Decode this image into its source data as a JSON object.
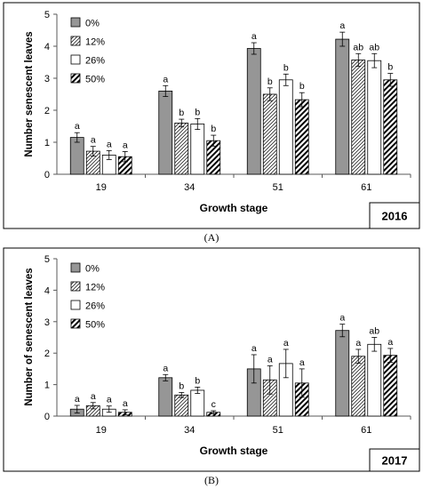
{
  "colors": {
    "bar_fill_0": "#969696",
    "bar_fill_26": "#ffffff",
    "hatch_line": "#000000",
    "axis": "#595959",
    "panel_border": "#000000"
  },
  "chart_data": [
    {
      "type": "bar",
      "panel_caption": "(A)",
      "year_label": "2016",
      "xlabel": "Growth stage",
      "ylabel": "Number senescent leaves",
      "ylim": [
        0,
        5
      ],
      "yticks": [
        "0",
        "1",
        "2",
        "3",
        "4",
        "5"
      ],
      "categories": [
        "19",
        "34",
        "51",
        "61"
      ],
      "legend_position": "top-left",
      "grid": false,
      "series": [
        {
          "name": "0%",
          "pattern": "solid-gray",
          "values": [
            1.15,
            2.6,
            3.93,
            4.22
          ],
          "errors": [
            0.15,
            0.17,
            0.18,
            0.22
          ],
          "labels": [
            "a",
            "a",
            "a",
            "a"
          ]
        },
        {
          "name": "12%",
          "pattern": "light-diagonal-hatch",
          "values": [
            0.72,
            1.6,
            2.5,
            3.57
          ],
          "errors": [
            0.15,
            0.12,
            0.2,
            0.2
          ],
          "labels": [
            "a",
            "b",
            "b",
            "ab"
          ]
        },
        {
          "name": "26%",
          "pattern": "white",
          "values": [
            0.6,
            1.57,
            2.95,
            3.55
          ],
          "errors": [
            0.14,
            0.17,
            0.18,
            0.22
          ],
          "labels": [
            "a",
            "b",
            "b",
            "ab"
          ]
        },
        {
          "name": "50%",
          "pattern": "bold-diagonal-hatch",
          "values": [
            0.55,
            1.05,
            2.33,
            2.95
          ],
          "errors": [
            0.16,
            0.17,
            0.22,
            0.2
          ],
          "labels": [
            "a",
            "b",
            "b",
            "b"
          ]
        }
      ]
    },
    {
      "type": "bar",
      "panel_caption": "(B)",
      "year_label": "2017",
      "xlabel": "Growth stage",
      "ylabel": "Number of senescent leaves",
      "ylim": [
        0,
        5
      ],
      "yticks": [
        "0",
        "1",
        "2",
        "3",
        "4",
        "5"
      ],
      "categories": [
        "19",
        "34",
        "51",
        "61"
      ],
      "legend_position": "top-left",
      "grid": false,
      "series": [
        {
          "name": "0%",
          "pattern": "solid-gray",
          "values": [
            0.22,
            1.22,
            1.5,
            2.72
          ],
          "errors": [
            0.12,
            0.1,
            0.45,
            0.2
          ],
          "labels": [
            "a",
            "a",
            "a",
            "a"
          ]
        },
        {
          "name": "12%",
          "pattern": "light-diagonal-hatch",
          "values": [
            0.33,
            0.67,
            1.15,
            1.9
          ],
          "errors": [
            0.1,
            0.08,
            0.45,
            0.22
          ],
          "labels": [
            "a",
            "b",
            "a",
            "a"
          ]
        },
        {
          "name": "26%",
          "pattern": "white",
          "values": [
            0.22,
            0.82,
            1.67,
            2.28
          ],
          "errors": [
            0.1,
            0.1,
            0.45,
            0.22
          ],
          "labels": [
            "a",
            "b",
            "a",
            "ab"
          ]
        },
        {
          "name": "50%",
          "pattern": "bold-diagonal-hatch",
          "values": [
            0.12,
            0.12,
            1.05,
            1.93
          ],
          "errors": [
            0.08,
            0.05,
            0.45,
            0.22
          ],
          "labels": [
            "a",
            "c",
            "a",
            "a"
          ]
        }
      ]
    }
  ]
}
